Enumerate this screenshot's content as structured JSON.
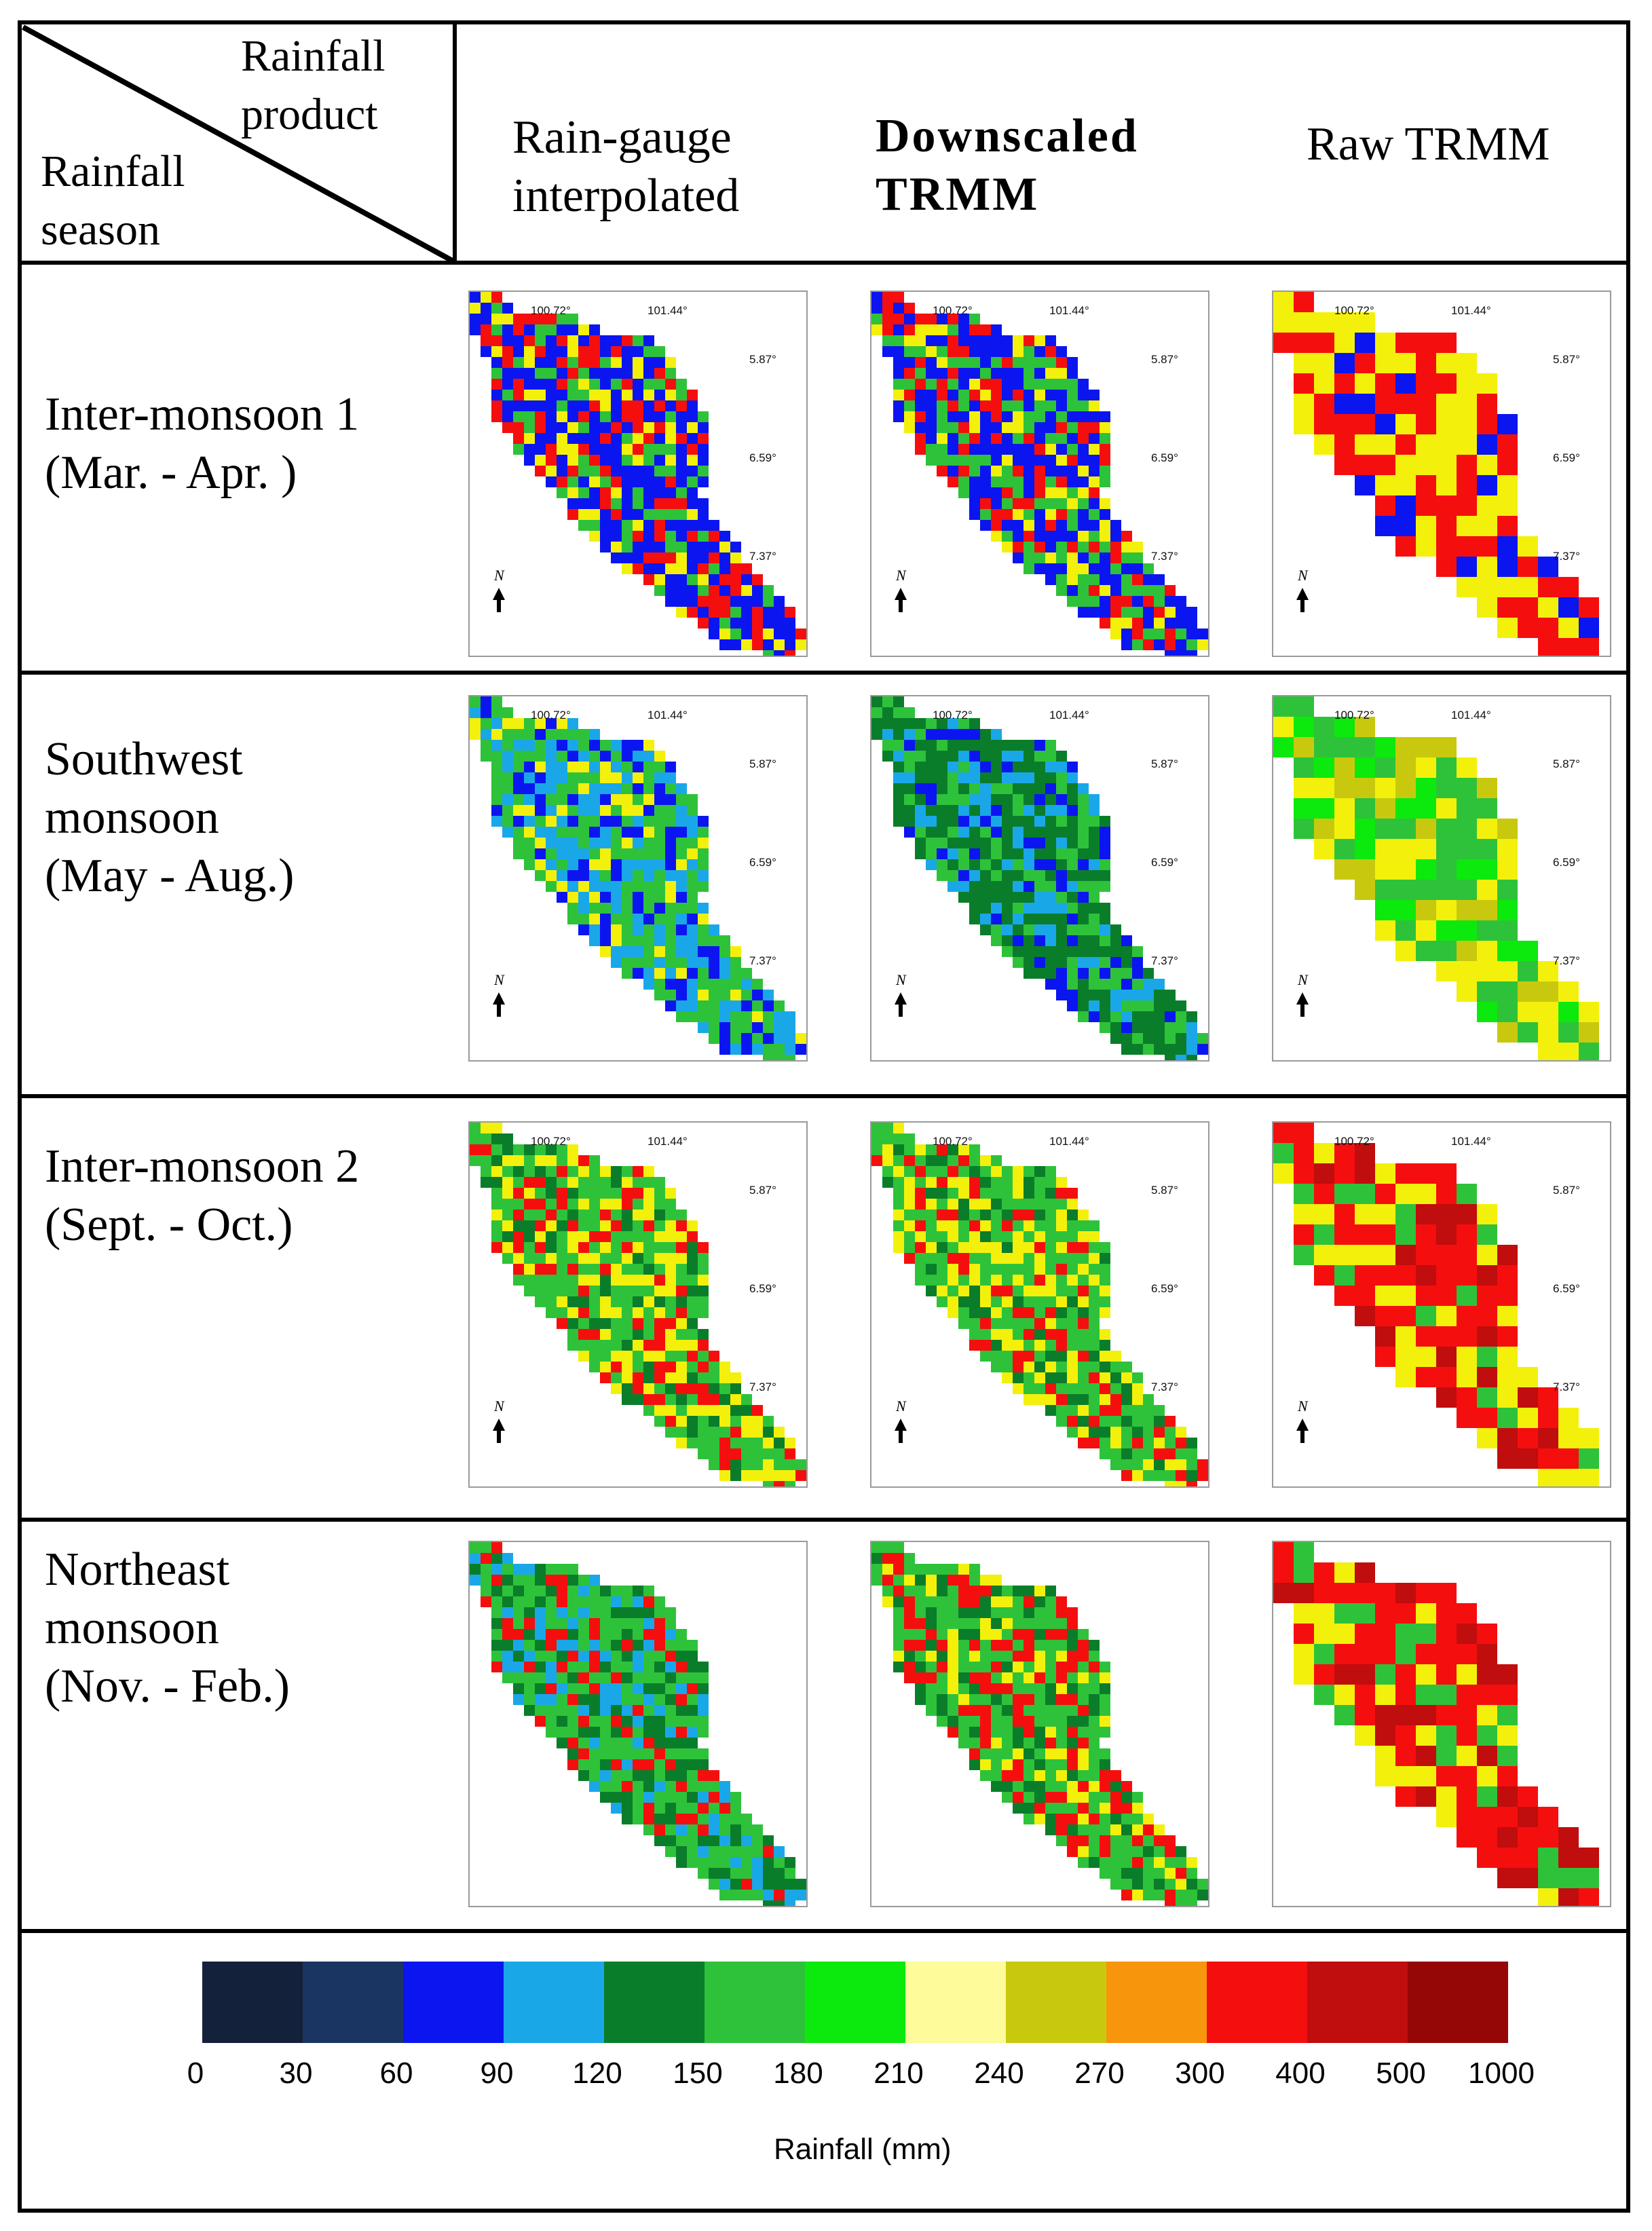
{
  "header": {
    "corner_top": "Rainfall\nproduct",
    "corner_bottom": "Rainfall\nseason",
    "columns": [
      {
        "label": "Rain-gauge\ninterpolated",
        "bold": false
      },
      {
        "label": "Downscaled\nTRMM",
        "bold": true
      },
      {
        "label": "Raw TRMM",
        "bold": false
      }
    ]
  },
  "rows": [
    {
      "label": "Inter-monsoon 1\n(Mar. - Apr. )",
      "has_coords": true,
      "dominant": [
        [
          "blue",
          "red",
          "green",
          "yellow"
        ],
        [
          "blue",
          "green",
          "red",
          "yellow"
        ],
        [
          "yellow",
          "red",
          "red",
          "blue"
        ]
      ]
    },
    {
      "label": "Southwest\nmonsoon\n(May - Aug.)",
      "has_coords": true,
      "dominant": [
        [
          "green",
          "lblue",
          "blue",
          "yellow"
        ],
        [
          "dgreen",
          "green",
          "lblue",
          "blue"
        ],
        [
          "green",
          "yellow",
          "lgreen",
          "olive"
        ]
      ]
    },
    {
      "label": "Inter-monsoon 2\n(Sept. - Oct.)",
      "has_coords": true,
      "dominant": [
        [
          "green",
          "yellow",
          "red",
          "dgreen"
        ],
        [
          "green",
          "yellow",
          "red",
          "dgreen"
        ],
        [
          "red",
          "yellow",
          "dred",
          "green"
        ]
      ]
    },
    {
      "label": "Northeast\nmonsoon\n (Nov. - Feb.)",
      "has_coords": false,
      "dominant": [
        [
          "green",
          "dgreen",
          "lblue",
          "red"
        ],
        [
          "green",
          "red",
          "dgreen",
          "yellow"
        ],
        [
          "red",
          "dred",
          "yellow",
          "green"
        ]
      ]
    }
  ],
  "map_labels": {
    "lon1": "100.72°",
    "lon2": "101.44°",
    "lat1": "5.87°",
    "lat2": "6.59°",
    "lat3": "7.37°",
    "north": "N"
  },
  "legend": {
    "title": "Rainfall  (mm)",
    "ticks": [
      "0",
      "30",
      "60",
      "90",
      "120",
      "150",
      "180",
      "210",
      "240",
      "270",
      "300",
      "400",
      "500",
      "1000"
    ],
    "colors": [
      "#14213a",
      "#1a3561",
      "#0b15f0",
      "#1aa7e8",
      "#0a7d2a",
      "#2ec23a",
      "#0ce90c",
      "#fdfb9a",
      "#c8c90e",
      "#f7950c",
      "#f50e0e",
      "#c00d0d",
      "#950707"
    ],
    "palette": {
      "dnavy": "#14213a",
      "navy": "#1a3561",
      "blue": "#0b15f0",
      "lblue": "#1aa7e8",
      "dgreen": "#0a7d2a",
      "green": "#2ec23a",
      "lgreen": "#0ce90c",
      "pyellow": "#fdfb9a",
      "olive": "#c8c90e",
      "yellow": "#f3f10c",
      "orange": "#f7950c",
      "red": "#f50e0e",
      "dred": "#c00d0d",
      "maroon": "#950707"
    }
  }
}
